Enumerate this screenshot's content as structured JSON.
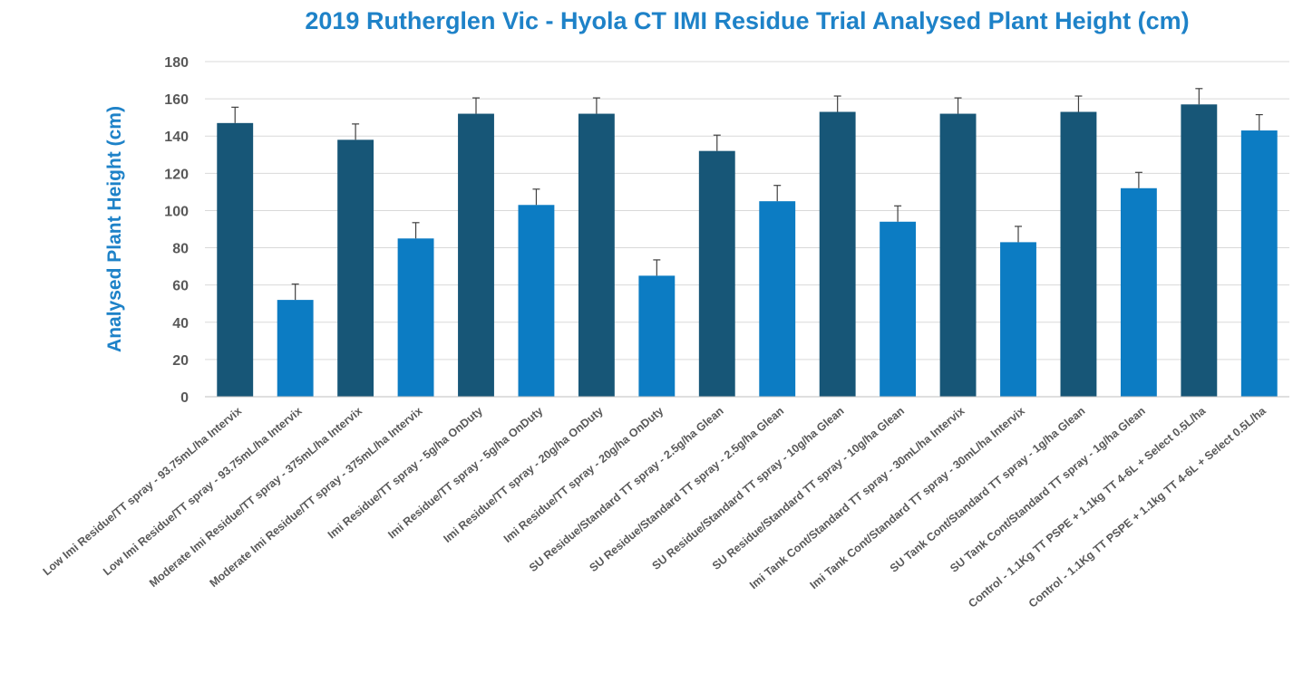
{
  "chart_data": {
    "type": "bar",
    "title": "2019 Rutherglen Vic - Hyola CT IMI Residue Trial Analysed Plant Height (cm)",
    "xlabel": "",
    "ylabel": "Analysed Plant Height (cm)",
    "ylim": [
      0,
      180
    ],
    "yticks": [
      0,
      20,
      40,
      60,
      80,
      100,
      120,
      140,
      160,
      180
    ],
    "grid": true,
    "legend": "none",
    "colors": {
      "dark": "#175677",
      "light": "#0c7cc3",
      "title": "#1e82c8",
      "ticks": "#595959",
      "grid": "#d9d9d9",
      "error_bar": "#404040"
    },
    "categories": [
      "Low Imi Residue/TT spray - 93.75mL/ha Intervix",
      "Low Imi Residue/TT spray - 93.75mL/ha Intervix",
      "Moderate Imi Residue/TT spray - 375mL/ha Intervix",
      "Moderate Imi Residue/TT spray - 375mL/ha Intervix",
      "Imi Residue/TT spray - 5g/ha OnDuty",
      "Imi Residue/TT spray - 5g/ha OnDuty",
      "Imi Residue/TT spray - 20g/ha OnDuty",
      "Imi Residue/TT spray - 20g/ha OnDuty",
      "SU Residue/Standard TT spray - 2.5g/ha Glean",
      "SU Residue/Standard TT spray - 2.5g/ha Glean",
      "SU Residue/Standard TT spray - 10g/ha Glean",
      "SU Residue/Standard TT spray - 10g/ha Glean",
      "Imi Tank Cont/Standard TT spray - 30mL/ha Intervix",
      "Imi Tank Cont/Standard TT spray - 30mL/ha Intervix",
      "SU Tank Cont/Standard TT spray - 1g/ha Glean",
      "SU Tank Cont/Standard TT spray - 1g/ha Glean",
      "Control - 1.1Kg TT PSPE + 1.1kg TT 4-6L + Select 0.5L/ha",
      "Control - 1.1Kg TT PSPE + 1.1kg TT 4-6L + Select 0.5L/ha"
    ],
    "values": [
      147,
      52,
      138,
      85,
      152,
      103,
      152,
      65,
      132,
      105,
      153,
      94,
      152,
      83,
      153,
      112,
      157,
      143
    ],
    "error": [
      8.5,
      8.5,
      8.5,
      8.5,
      8.5,
      8.5,
      8.5,
      8.5,
      8.5,
      8.5,
      8.5,
      8.5,
      8.5,
      8.5,
      8.5,
      8.5,
      8.5,
      8.5
    ],
    "bar_shade": [
      "dark",
      "light",
      "dark",
      "light",
      "dark",
      "light",
      "dark",
      "light",
      "dark",
      "light",
      "dark",
      "light",
      "dark",
      "light",
      "dark",
      "light",
      "dark",
      "light"
    ]
  }
}
